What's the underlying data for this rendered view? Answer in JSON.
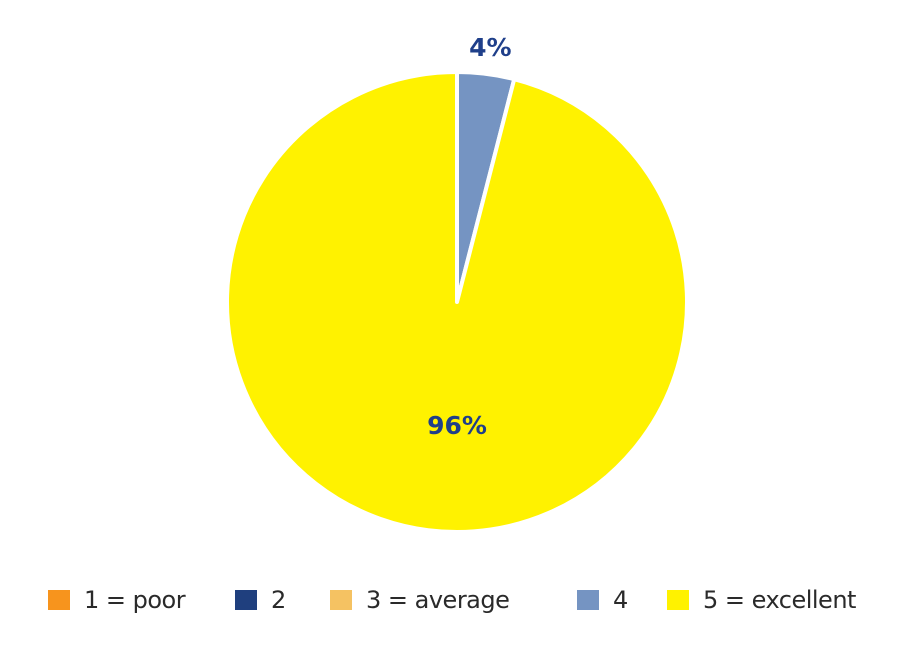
{
  "chart_data": {
    "type": "pie",
    "title": "",
    "categories": [
      "1 = poor",
      "2",
      "3 = average",
      "4",
      "5 = excellent"
    ],
    "values": [
      0,
      0,
      0,
      4,
      96
    ],
    "labels": [
      "",
      "",
      "",
      "4%",
      "96%"
    ],
    "colors": [
      "#f7941d",
      "#1f3f7e",
      "#f5c262",
      "#7594c2",
      "#fff200"
    ],
    "label_color": "#1f3f8a",
    "start_angle": "12 o'clock",
    "direction": "clockwise",
    "legend_position": "bottom"
  }
}
